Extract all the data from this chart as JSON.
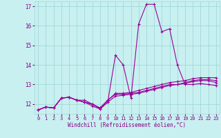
{
  "xlabel": "Windchill (Refroidissement éolien,°C)",
  "background_color": "#c8f0f0",
  "grid_color": "#a0d8d8",
  "line_color": "#990099",
  "xlim": [
    -0.5,
    23.5
  ],
  "ylim": [
    11.5,
    17.25
  ],
  "xticks": [
    0,
    1,
    2,
    3,
    4,
    5,
    6,
    7,
    8,
    9,
    10,
    11,
    12,
    13,
    14,
    15,
    16,
    17,
    18,
    19,
    20,
    21,
    22,
    23
  ],
  "yticks": [
    12,
    13,
    14,
    15,
    16,
    17
  ],
  "series": [
    [
      11.7,
      11.85,
      11.8,
      12.3,
      12.35,
      12.2,
      12.2,
      12.0,
      11.75,
      12.1,
      14.5,
      14.0,
      12.3,
      16.1,
      17.1,
      17.1,
      15.7,
      15.85,
      14.0,
      13.0,
      13.0,
      13.05,
      13.0,
      12.95
    ],
    [
      11.7,
      11.85,
      11.8,
      12.3,
      12.35,
      12.2,
      12.1,
      12.0,
      11.8,
      12.2,
      12.55,
      12.55,
      12.6,
      12.7,
      12.8,
      12.9,
      13.0,
      13.1,
      13.15,
      13.2,
      13.3,
      13.35,
      13.35,
      13.35
    ],
    [
      11.7,
      11.85,
      11.8,
      12.3,
      12.35,
      12.2,
      12.1,
      12.0,
      11.8,
      12.2,
      12.5,
      12.5,
      12.55,
      12.6,
      12.7,
      12.8,
      12.9,
      13.0,
      13.0,
      13.1,
      13.2,
      13.25,
      13.25,
      13.2
    ],
    [
      11.7,
      11.85,
      11.8,
      12.3,
      12.35,
      12.2,
      12.1,
      11.9,
      11.75,
      12.1,
      12.4,
      12.45,
      12.5,
      12.55,
      12.65,
      12.75,
      12.85,
      12.95,
      13.0,
      13.05,
      13.15,
      13.2,
      13.2,
      13.1
    ]
  ],
  "tick_color": "#880088",
  "label_color": "#880088",
  "tick_fontsize": 5.0,
  "xlabel_fontsize": 5.5
}
